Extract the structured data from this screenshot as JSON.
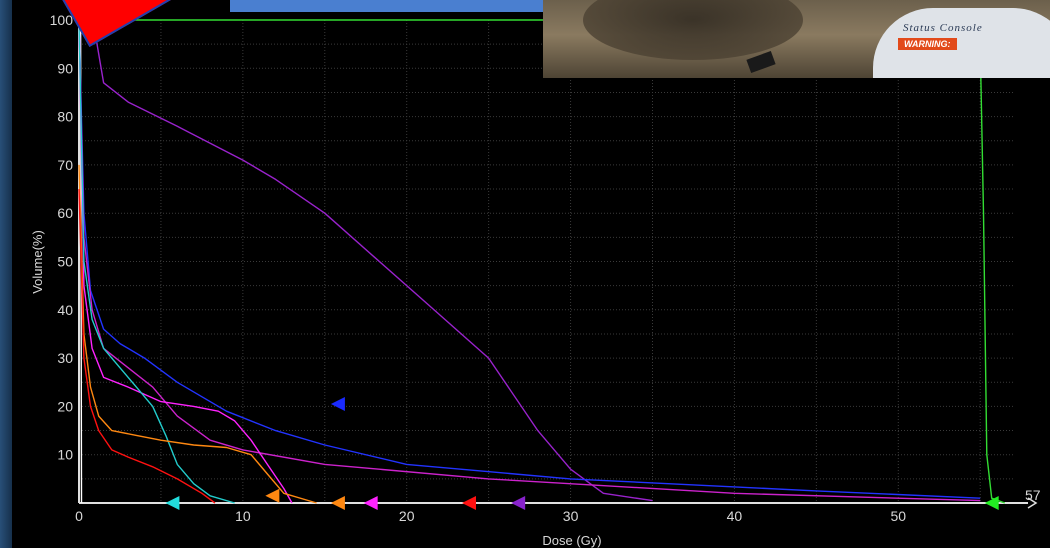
{
  "chart_data": {
    "type": "line",
    "xlabel": "Dose (Gy)",
    "ylabel": "Volume(%)",
    "xlim": [
      0,
      57
    ],
    "ylim": [
      0,
      100
    ],
    "x_ticks": [
      0,
      10,
      20,
      30,
      40,
      50
    ],
    "y_ticks": [
      10,
      20,
      30,
      40,
      50,
      60,
      70,
      80,
      90,
      100
    ],
    "x_axis_max_label": "57",
    "grid": true,
    "background": "#000000",
    "series": [
      {
        "color": "#ffffff",
        "x": [
          0,
          0.1,
          0.15
        ],
        "y": [
          100,
          100,
          0
        ]
      },
      {
        "color": "#33dd33",
        "x": [
          0,
          0.3,
          54.5,
          55,
          55.2,
          55.4,
          55.7,
          56.5
        ],
        "y": [
          100,
          100,
          100,
          95,
          60,
          10,
          1,
          0
        ]
      },
      {
        "color": "#9922cc",
        "x": [
          0.3,
          1,
          1.5,
          3,
          6,
          10,
          12,
          15,
          18,
          21,
          25,
          28,
          30,
          32,
          35
        ],
        "y": [
          100,
          97,
          87,
          83,
          78,
          71,
          67,
          60,
          51,
          42,
          30,
          15,
          7,
          2,
          0.5
        ]
      },
      {
        "color": "#2233ff",
        "x": [
          0,
          0.3,
          0.7,
          1.5,
          2.5,
          4,
          6,
          9,
          12,
          15,
          20,
          30,
          45,
          55
        ],
        "y": [
          100,
          60,
          44,
          36,
          33,
          30,
          25,
          19,
          15,
          12,
          8,
          5,
          2.5,
          1
        ]
      },
      {
        "color": "#cc22cc",
        "x": [
          0,
          0.3,
          0.8,
          1.5,
          3,
          4.5,
          6,
          8,
          10,
          15,
          25,
          40,
          55
        ],
        "y": [
          100,
          55,
          40,
          32,
          28,
          24,
          18,
          13,
          11,
          8,
          5,
          2,
          0.5
        ]
      },
      {
        "color": "#ff22ff",
        "x": [
          0,
          0.3,
          0.8,
          1.5,
          3,
          5,
          7,
          8.5,
          9.5,
          10.5,
          11.5,
          12.5,
          13
        ],
        "y": [
          100,
          45,
          32,
          26,
          24,
          21,
          20,
          19,
          17,
          13,
          8,
          3,
          0
        ]
      },
      {
        "color": "#22cccc",
        "x": [
          0,
          0.3,
          0.8,
          1.5,
          2.5,
          3.5,
          4.5,
          5.3,
          6,
          7,
          8,
          9.5
        ],
        "y": [
          100,
          50,
          38,
          32,
          28,
          24,
          20,
          14,
          8,
          4,
          1.5,
          0
        ]
      },
      {
        "color": "#ff8811",
        "x": [
          0,
          0.3,
          0.7,
          1.2,
          2,
          3.5,
          5,
          7,
          9,
          10.5,
          11.5,
          12.5,
          14.5
        ],
        "y": [
          70,
          35,
          24,
          18,
          15,
          14,
          13,
          12,
          11.5,
          10,
          6,
          2,
          0
        ]
      },
      {
        "color": "#ff1111",
        "x": [
          0,
          0.3,
          0.7,
          1.2,
          2,
          3,
          4.5,
          6,
          7.5,
          8.3
        ],
        "y": [
          65,
          30,
          20,
          15,
          11,
          9.5,
          7.5,
          5,
          2,
          0
        ]
      }
    ],
    "markers": [
      {
        "color": "#22dddd",
        "x": 5.7,
        "y": 0
      },
      {
        "color": "#ff8811",
        "x": 11.8,
        "y": 1.5
      },
      {
        "color": "#ff8811",
        "x": 15.8,
        "y": 0
      },
      {
        "color": "#ff22ff",
        "x": 17.8,
        "y": 0
      },
      {
        "color": "#ff1111",
        "x": 23.8,
        "y": 0
      },
      {
        "color": "#8822cc",
        "x": 26.8,
        "y": 0
      },
      {
        "color": "#1a2aff",
        "x": 15.8,
        "y": 20.5
      },
      {
        "color": "#22ee22",
        "x": 55.7,
        "y": 0
      }
    ]
  },
  "overlay": {
    "photo": {
      "console_label": "Status Console",
      "warning_label": "WARNING:"
    },
    "colors": {
      "blue_bar": "#4a7fd0",
      "red_flag": "#ff0000"
    }
  }
}
